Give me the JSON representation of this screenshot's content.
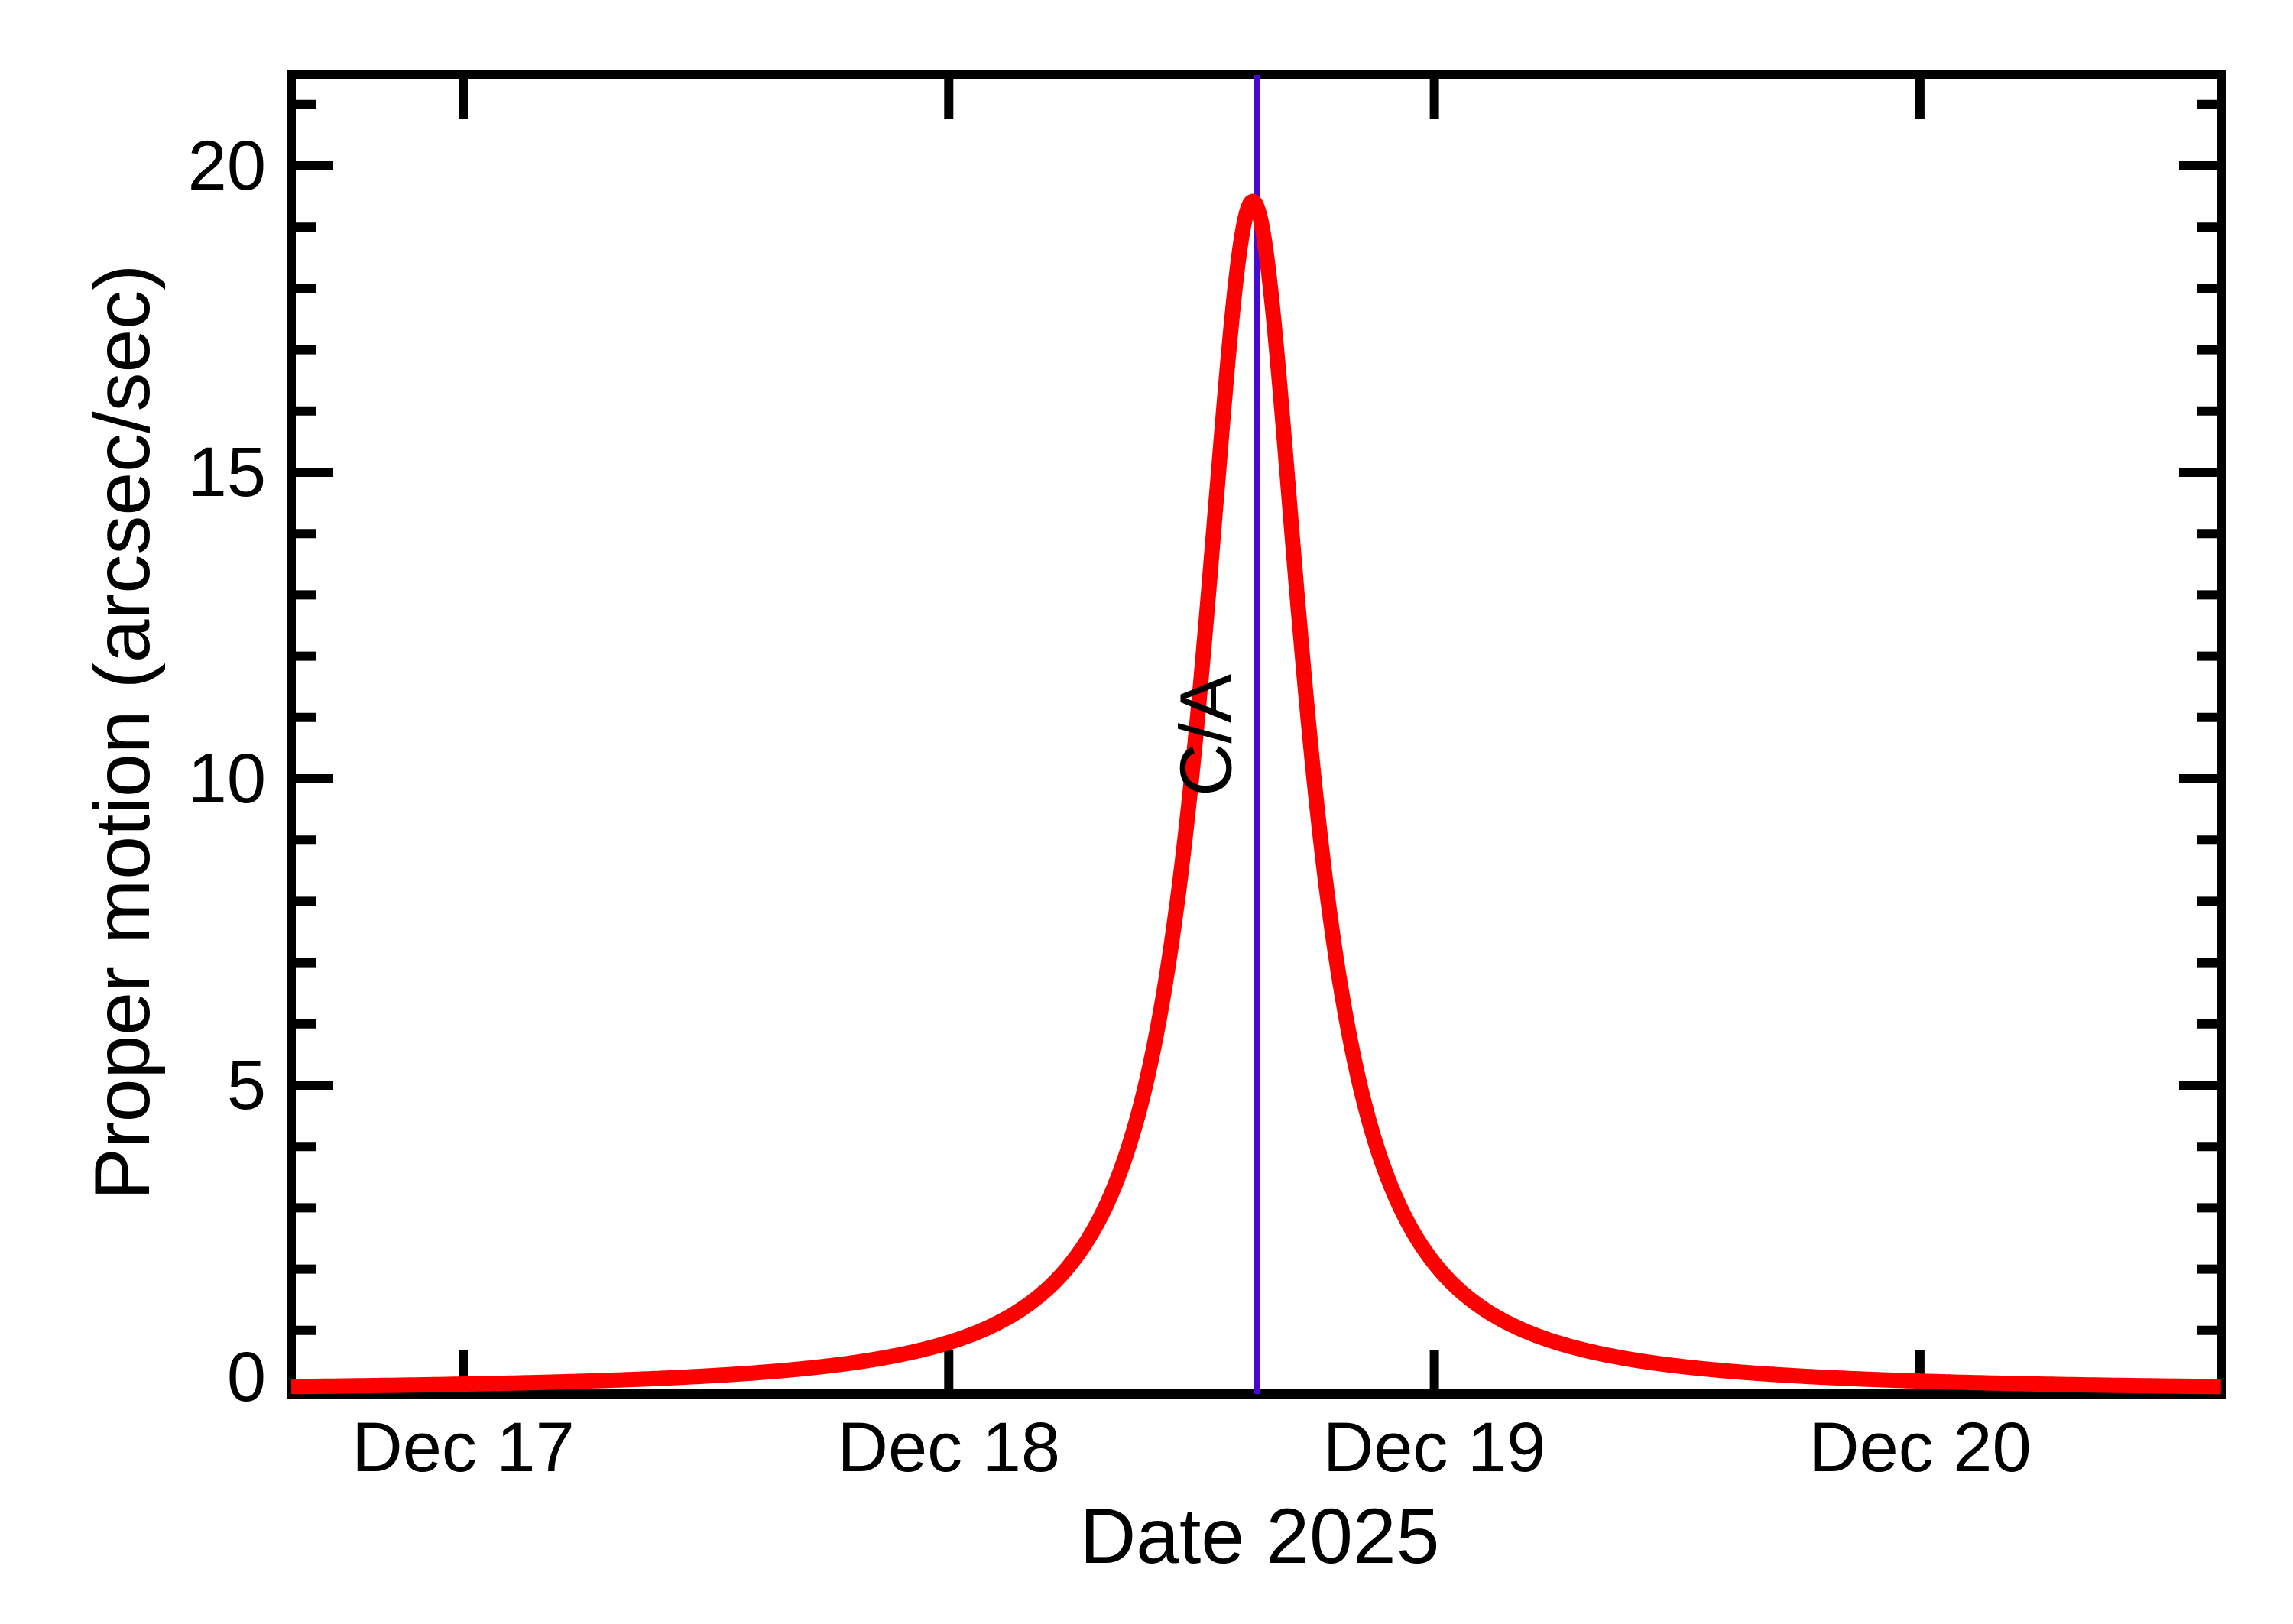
{
  "chart_data": {
    "type": "line",
    "title": "",
    "xlabel": "Date 2025",
    "ylabel": "Proper motion (arcsec/sec)",
    "x_tick_labels": [
      "Dec 17",
      "Dec 18",
      "Dec 19",
      "Dec 20"
    ],
    "x_tick_positions_days": [
      0,
      1,
      2,
      3
    ],
    "x_range_days": [
      -0.354,
      3.62
    ],
    "y_tick_labels": [
      "0",
      "5",
      "10",
      "15",
      "20"
    ],
    "y_tick_values": [
      0,
      5,
      10,
      15,
      20
    ],
    "y_minor_tick_step": 1,
    "y_minor_tick_max": 21,
    "ylim": [
      0,
      21.5
    ],
    "grid": false,
    "legend": "none",
    "frame_color": "#000000",
    "background_color": "#ffffff",
    "series": [
      {
        "name": "proper-motion-curve",
        "color": "#ff0000",
        "model": {
          "type": "lorentzian",
          "peak": 19.42,
          "center_days": 1.626,
          "hwhm_days": 0.13
        },
        "samples": [
          [
            -0.354,
            0.083
          ],
          [
            0.0,
            0.123
          ],
          [
            0.25,
            0.172
          ],
          [
            0.5,
            0.256
          ],
          [
            0.75,
            0.418
          ],
          [
            1.0,
            0.803
          ],
          [
            1.1,
            1.118
          ],
          [
            1.2,
            1.654
          ],
          [
            1.3,
            2.664
          ],
          [
            1.4,
            4.83
          ],
          [
            1.45,
            6.86
          ],
          [
            1.5,
            10.02
          ],
          [
            1.55,
            14.47
          ],
          [
            1.6,
            18.67
          ],
          [
            1.626,
            19.42
          ],
          [
            1.65,
            18.78
          ],
          [
            1.7,
            14.67
          ],
          [
            1.75,
            10.17
          ],
          [
            1.8,
            6.96
          ],
          [
            1.85,
            4.89
          ],
          [
            1.9,
            3.57
          ],
          [
            2.0,
            2.09
          ],
          [
            2.1,
            1.36
          ],
          [
            2.25,
            0.81
          ],
          [
            2.5,
            0.42
          ],
          [
            2.75,
            0.256
          ],
          [
            3.0,
            0.172
          ],
          [
            3.25,
            0.124
          ],
          [
            3.62,
            0.082
          ]
        ]
      }
    ],
    "annotation": {
      "label": "C/A",
      "x_days": 1.634,
      "color": "#4609d2",
      "line_full_height": true,
      "label_rotation_deg": -90
    }
  }
}
